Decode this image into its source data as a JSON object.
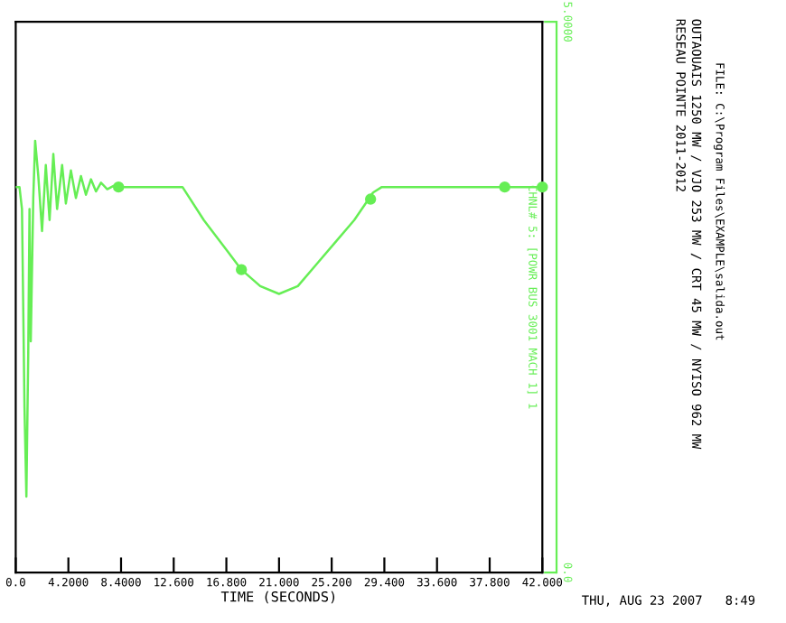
{
  "chart_data": {
    "type": "line",
    "title": "RESEAU POINTE 2011-2012",
    "subtitle": "OUTAOUAIS 1250 MW / VJO 253 MW / CRT 45 MW / NYISO 962 MW",
    "xlabel": "TIME (SECONDS)",
    "y2label": "CHNL# 5: [POWR BUS 3001 MACH 1] 1",
    "annotations": [
      "FILE: C:\\Program Files\\EXAMPLE\\salida.out",
      "THU, AUG 23 2007   8:49"
    ],
    "series": [
      {
        "color": "#66ee55",
        "axis": "y2",
        "x": [
          0,
          0.3,
          0.5,
          0.7,
          0.85,
          1.0,
          1.1,
          1.2,
          1.4,
          1.55,
          1.8,
          2.1,
          2.4,
          2.7,
          3.0,
          3.3,
          3.7,
          4.0,
          4.4,
          4.8,
          5.2,
          5.6,
          6.0,
          6.4,
          6.8,
          7.3,
          7.8,
          8.3,
          13.3,
          15,
          17,
          18,
          19.5,
          21,
          22.5,
          24,
          25.5,
          27,
          28.5,
          29.2,
          42
        ],
        "values": [
          3.5,
          3.5,
          3.3,
          1.5,
          0.69,
          2.0,
          3.3,
          2.1,
          3.4,
          3.92,
          3.6,
          3.1,
          3.7,
          3.2,
          3.8,
          3.3,
          3.7,
          3.35,
          3.65,
          3.4,
          3.6,
          3.43,
          3.57,
          3.46,
          3.54,
          3.48,
          3.51,
          3.5,
          3.5,
          3.2,
          2.9,
          2.75,
          2.6,
          2.53,
          2.6,
          2.8,
          3.0,
          3.2,
          3.45,
          3.5,
          3.5
        ]
      },
      {
        "type": "scatter",
        "color": "#66ee55",
        "axis": "y2",
        "marker": "circle",
        "x": [
          8.2,
          18,
          28.3,
          39,
          42
        ],
        "values": [
          3.5,
          2.75,
          3.39,
          3.5,
          3.5
        ]
      }
    ],
    "xlim": [
      0,
      42
    ],
    "xticks": [
      {
        "value": 0,
        "label": "0.0"
      },
      {
        "value": 4.2,
        "label": "4.2000"
      },
      {
        "value": 8.4,
        "label": "8.4000"
      },
      {
        "value": 12.6,
        "label": "12.600"
      },
      {
        "value": 16.8,
        "label": "16.800"
      },
      {
        "value": 21,
        "label": "21.000"
      },
      {
        "value": 25.2,
        "label": "25.200"
      },
      {
        "value": 29.4,
        "label": "29.400"
      },
      {
        "value": 33.6,
        "label": "33.600"
      },
      {
        "value": 37.8,
        "label": "37.800"
      },
      {
        "value": 42,
        "label": "42.000"
      }
    ],
    "y2lim": [
      0,
      5
    ],
    "y2ticks": [
      {
        "value": 0,
        "label": "0.0"
      },
      {
        "value": 5,
        "label": "5.0000"
      }
    ],
    "grid": false,
    "legend": false
  }
}
